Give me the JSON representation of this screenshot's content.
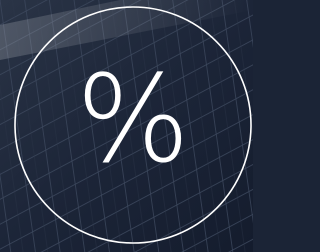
{
  "icon": {
    "symbol": "%"
  }
}
